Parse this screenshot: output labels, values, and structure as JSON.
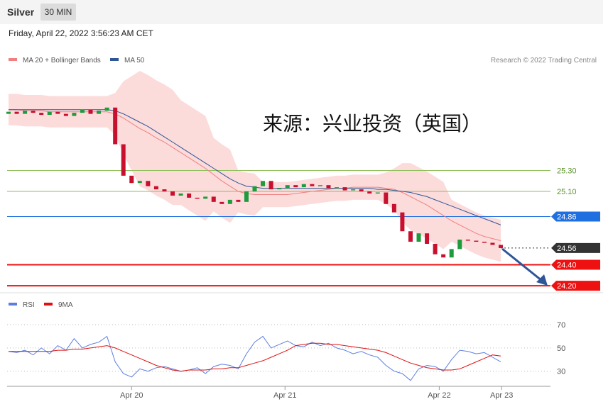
{
  "header": {
    "symbol": "Silver",
    "interval": "30 MIN",
    "datetime": "Friday, April 22, 2022 3:56:23 AM CET"
  },
  "watermark": "来源：兴业投资（英国）",
  "chart_data": [
    {
      "type": "candlestick",
      "legend": [
        "MA 20 + Bollinger Bands",
        "MA 50"
      ],
      "credit": "Research © 2022 Trading Central",
      "xlim": [
        -1.04,
        66.06
      ],
      "ylim": [
        24.14,
        26.25
      ],
      "xticks": [
        {
          "value": 15,
          "label": "Apr 20"
        },
        {
          "value": 33.7,
          "label": "Apr 21"
        },
        {
          "value": 52.5,
          "label": "Apr 22"
        },
        {
          "value": 60.1,
          "label": "Apr 23"
        }
      ],
      "up_color": "#1e9b3c",
      "down_color": "#c8102e",
      "open": [
        25.84,
        25.86,
        25.84,
        25.87,
        25.85,
        25.83,
        25.86,
        25.84,
        25.82,
        25.85,
        25.88,
        25.84,
        25.87,
        25.9,
        25.55,
        25.25,
        25.18,
        25.2,
        25.15,
        25.12,
        25.1,
        25.06,
        25.08,
        25.04,
        25.03,
        25.05,
        25.0,
        24.98,
        25.02,
        25.0,
        25.1,
        25.15,
        25.2,
        25.12,
        25.13,
        25.16,
        25.14,
        25.17,
        25.15,
        25.16,
        25.13,
        25.14,
        25.11,
        25.12,
        25.1,
        25.08,
        25.09,
        24.98,
        24.9,
        24.72,
        24.62,
        24.7,
        24.6,
        24.5,
        24.47,
        24.55,
        24.64,
        24.63,
        24.62,
        24.61,
        24.59
      ],
      "close": [
        25.86,
        25.84,
        25.87,
        25.85,
        25.83,
        25.86,
        25.84,
        25.82,
        25.85,
        25.88,
        25.84,
        25.87,
        25.9,
        25.55,
        25.25,
        25.18,
        25.2,
        25.15,
        25.12,
        25.1,
        25.06,
        25.08,
        25.04,
        25.03,
        25.05,
        25.0,
        24.98,
        25.02,
        25.0,
        25.1,
        25.15,
        25.2,
        25.12,
        25.13,
        25.16,
        25.14,
        25.17,
        25.15,
        25.16,
        25.13,
        25.14,
        25.11,
        25.12,
        25.1,
        25.08,
        25.09,
        24.98,
        24.9,
        24.72,
        24.62,
        24.7,
        24.6,
        24.5,
        24.47,
        24.55,
        24.64,
        24.63,
        24.62,
        24.61,
        24.59,
        24.56
      ],
      "series": [
        {
          "name": "MA 20",
          "color": "#f08080",
          "values": [
            25.88,
            25.88,
            25.87,
            25.87,
            25.87,
            25.86,
            25.86,
            25.86,
            25.86,
            25.86,
            25.86,
            25.86,
            25.86,
            25.84,
            25.8,
            25.75,
            25.7,
            25.66,
            25.61,
            25.57,
            25.52,
            25.47,
            25.42,
            25.37,
            25.32,
            25.26,
            25.2,
            25.15,
            25.1,
            25.08,
            25.07,
            25.07,
            25.07,
            25.07,
            25.07,
            25.08,
            25.09,
            25.1,
            25.11,
            25.12,
            25.13,
            25.13,
            25.14,
            25.14,
            25.14,
            25.14,
            25.13,
            25.12,
            25.09,
            25.05,
            25.01,
            24.97,
            24.92,
            24.87,
            24.82,
            24.78,
            24.74,
            24.7,
            24.67,
            24.65,
            24.63
          ]
        },
        {
          "name": "MA 50",
          "color": "#2f5597",
          "values": [
            25.88,
            25.88,
            25.88,
            25.88,
            25.88,
            25.88,
            25.88,
            25.88,
            25.88,
            25.88,
            25.88,
            25.88,
            25.88,
            25.87,
            25.84,
            25.8,
            25.76,
            25.72,
            25.67,
            25.62,
            25.57,
            25.52,
            25.47,
            25.42,
            25.37,
            25.32,
            25.27,
            25.22,
            25.18,
            25.15,
            25.14,
            25.13,
            25.13,
            25.13,
            25.13,
            25.13,
            25.13,
            25.13,
            25.13,
            25.13,
            25.13,
            25.13,
            25.13,
            25.13,
            25.13,
            25.12,
            25.12,
            25.11,
            25.1,
            25.09,
            25.07,
            25.05,
            25.02,
            24.99,
            24.96,
            24.93,
            24.9,
            24.87,
            24.84,
            24.81,
            24.78
          ]
        }
      ],
      "band_color": "#fbd5d5",
      "band_upper": [
        26.03,
        26.03,
        26.02,
        26.02,
        26.02,
        26.01,
        26.01,
        26.01,
        26.01,
        26.01,
        26.01,
        26.01,
        26.01,
        26.04,
        26.15,
        26.2,
        26.25,
        26.21,
        26.16,
        26.12,
        26.07,
        25.97,
        25.92,
        25.87,
        25.82,
        25.61,
        25.55,
        25.5,
        25.3,
        25.28,
        25.27,
        25.19,
        25.19,
        25.19,
        25.19,
        25.2,
        25.21,
        25.22,
        25.23,
        25.24,
        25.25,
        25.25,
        25.26,
        25.26,
        25.26,
        25.26,
        25.28,
        25.32,
        25.37,
        25.37,
        25.33,
        25.29,
        25.24,
        25.19,
        25.02,
        24.98,
        24.94,
        24.9,
        24.87,
        24.85,
        24.83
      ],
      "band_lower": [
        25.73,
        25.73,
        25.72,
        25.72,
        25.72,
        25.71,
        25.71,
        25.71,
        25.71,
        25.71,
        25.71,
        25.71,
        25.71,
        25.64,
        25.45,
        25.3,
        25.15,
        25.11,
        25.06,
        25.02,
        24.97,
        24.97,
        24.92,
        24.87,
        24.82,
        24.91,
        24.85,
        24.8,
        24.9,
        24.88,
        24.87,
        24.95,
        24.95,
        24.95,
        24.95,
        24.96,
        24.97,
        24.98,
        24.99,
        25.0,
        25.01,
        25.01,
        25.02,
        25.02,
        25.02,
        25.02,
        24.98,
        24.92,
        24.81,
        24.73,
        24.69,
        24.65,
        24.6,
        24.55,
        24.62,
        24.58,
        24.54,
        24.5,
        24.47,
        24.45,
        24.43
      ],
      "levels": [
        {
          "value": 25.3,
          "label": "25.30",
          "color": "#8fbf5a",
          "box": false
        },
        {
          "value": 25.1,
          "label": "25.10",
          "color": "#8fbf5a",
          "box": false
        },
        {
          "value": 24.86,
          "label": "24.86",
          "color": "#1f6fe0",
          "box": true
        },
        {
          "value": 24.56,
          "label": "24.56",
          "color": "#333333",
          "box": true,
          "dotted": true
        },
        {
          "value": 24.4,
          "label": "24.40",
          "color": "#ee1111",
          "box": true
        },
        {
          "value": 24.2,
          "label": "24.20",
          "color": "#ee1111",
          "box": true
        }
      ]
    },
    {
      "type": "line",
      "xlim": [
        -1.04,
        66.06
      ],
      "ylim": [
        17,
        81
      ],
      "yticks": [
        70,
        50,
        30
      ],
      "series": [
        {
          "name": "RSI",
          "color": "#5b7fe0",
          "values": [
            47,
            46,
            48,
            44,
            50,
            45,
            52,
            48,
            58,
            50,
            53,
            55,
            60,
            38,
            28,
            25,
            32,
            30,
            33,
            34,
            32,
            30,
            31,
            33,
            28,
            34,
            36,
            35,
            32,
            45,
            55,
            60,
            50,
            53,
            56,
            52,
            51,
            55,
            52,
            54,
            50,
            48,
            45,
            47,
            44,
            42,
            35,
            30,
            28,
            22,
            32,
            35,
            34,
            30,
            40,
            48,
            47,
            45,
            46,
            42,
            38
          ]
        },
        {
          "name": "9MA",
          "color": "#e01010",
          "values": [
            47,
            47,
            47,
            47,
            47,
            47,
            48,
            48,
            49,
            49,
            50,
            51,
            52,
            50,
            47,
            44,
            41,
            38,
            35,
            33,
            31,
            30,
            31,
            31,
            31,
            32,
            32,
            33,
            33,
            35,
            37,
            39,
            42,
            45,
            48,
            52,
            53,
            54,
            54,
            53,
            53,
            52,
            51,
            50,
            49,
            48,
            46,
            43,
            40,
            37,
            35,
            33,
            32,
            31,
            31,
            32,
            35,
            38,
            41,
            44,
            43
          ]
        }
      ]
    }
  ]
}
